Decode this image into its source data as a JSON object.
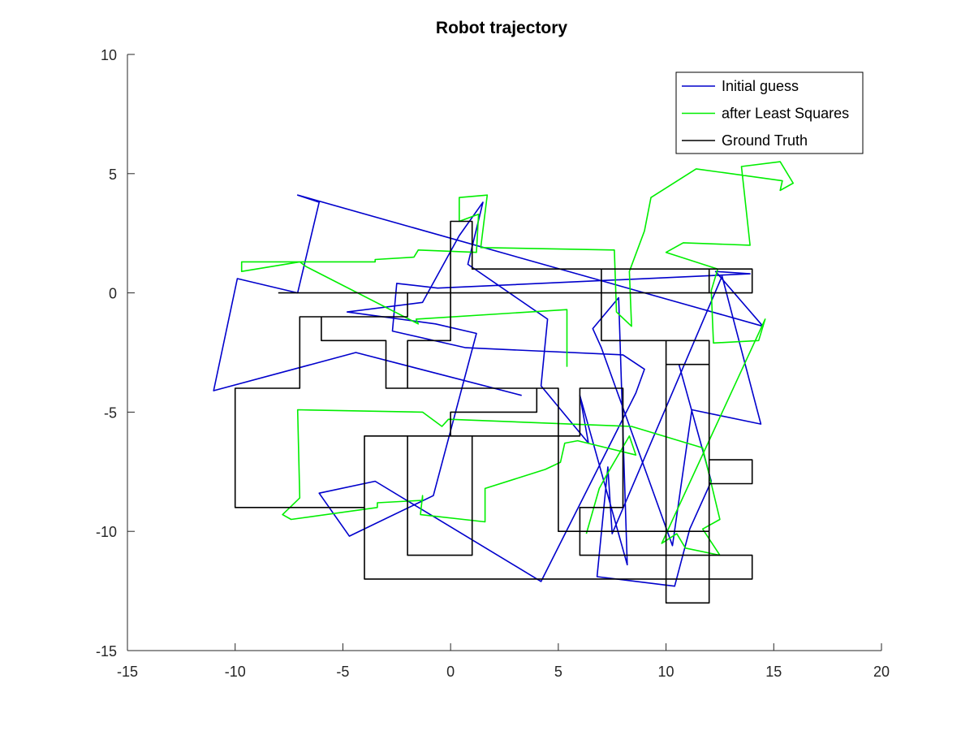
{
  "chart_data": {
    "type": "line",
    "title": "Robot trajectory",
    "xlabel": "",
    "ylabel": "",
    "xlim": [
      -15,
      20
    ],
    "ylim": [
      -15,
      10
    ],
    "xticks": [
      -15,
      -10,
      -5,
      0,
      5,
      10,
      15,
      20
    ],
    "yticks": [
      -15,
      -10,
      -5,
      0,
      5,
      10
    ],
    "grid": false,
    "legend_position": "top-right",
    "series": [
      {
        "name": "Initial guess",
        "color": "#0000cc",
        "x": [
          3.3,
          -4.4,
          -11,
          -9.9,
          -7.1,
          -6.1,
          -7.1,
          14.5,
          12.3,
          13.9,
          -0.6,
          -2.5,
          -2.7,
          0.7,
          8,
          9,
          8.6,
          4.2,
          -3.5,
          -6.1,
          -4.7,
          -0.8,
          1.2,
          -0.7,
          -4.8,
          -1.3,
          0.4,
          1.5,
          0.8,
          4.5,
          4.2,
          6.4,
          6.0,
          8.2,
          7.8,
          6.6,
          7.0,
          10.3,
          11.2,
          14.4,
          12.6,
          7.5,
          7.3,
          6.8,
          10.4,
          11.1,
          12.1,
          10.6
        ],
        "y": [
          -4.3,
          -2.5,
          -4.1,
          0.6,
          0,
          3.8,
          4.1,
          -1.4,
          0.9,
          0.8,
          0.2,
          0.4,
          -1.6,
          -2.3,
          -2.6,
          -3.2,
          -4.2,
          -12.1,
          -7.9,
          -8.4,
          -10.2,
          -8.5,
          -1.7,
          -1.3,
          -0.8,
          -0.4,
          2.4,
          3.8,
          1.2,
          -1.1,
          -3.9,
          -6.3,
          -4.3,
          -11.4,
          -0.2,
          -1.5,
          -2.3,
          -10.6,
          -4.9,
          -5.5,
          0.7,
          -10.1,
          -7.3,
          -11.9,
          -12.3,
          -9.9,
          -7.9,
          -3.0
        ]
      },
      {
        "name": "after Least Squares",
        "color": "#00ee00",
        "x": [
          5.4,
          5.4,
          -1.6,
          -1.5,
          -6.7,
          -7,
          -9.7,
          -9.7,
          -3.5,
          -3.5,
          -1.7,
          -1.5,
          1.2,
          1.3,
          0.4,
          0.4,
          1.7,
          1.4,
          7.6,
          7.7,
          8.4,
          8.3,
          9.0,
          9.3,
          11.4,
          15.4,
          15.3,
          15.9,
          15.3,
          13.5,
          13.9,
          10.8,
          10.0,
          12.4,
          12.1,
          12.2,
          14.3,
          14.6,
          9.8,
          10.5,
          10.9,
          12.5,
          11.7,
          12.5,
          11.7,
          8.4,
          -0.1,
          -0.4,
          -1.3,
          -7.1,
          -7.0,
          -7.8,
          -7.4,
          -3.4,
          -3.4,
          -1.3,
          -1.3,
          -1.4,
          1.6,
          1.6,
          4.4,
          5.1,
          5.3,
          5.9,
          8.6,
          8.3,
          7.2,
          6.9,
          6.3
        ],
        "y": [
          -3.1,
          -0.7,
          -1.1,
          -1.3,
          1.1,
          1.3,
          0.9,
          1.3,
          1.3,
          1.4,
          1.5,
          1.8,
          1.7,
          3.3,
          3.0,
          4.0,
          4.1,
          1.9,
          1.8,
          -0.8,
          -1.4,
          0.9,
          2.6,
          4.0,
          5.2,
          4.7,
          4.3,
          4.6,
          5.5,
          5.3,
          2.0,
          2.1,
          1.7,
          1.0,
          0.1,
          -2.1,
          -2.0,
          -1.1,
          -10.5,
          -10.1,
          -10.7,
          -11.0,
          -9.9,
          -9.5,
          -6.5,
          -5.6,
          -5.3,
          -5.6,
          -5.0,
          -4.9,
          -8.6,
          -9.3,
          -9.5,
          -9.0,
          -8.8,
          -8.7,
          -8.5,
          -9.3,
          -9.6,
          -8.2,
          -7.4,
          -7.1,
          -6.3,
          -6.2,
          -6.8,
          -6.0,
          -7.7,
          -8.2,
          -10.1
        ]
      },
      {
        "name": "Ground Truth",
        "color": "#000000",
        "x": [
          -8,
          12,
          12,
          7,
          7,
          10,
          10,
          12,
          12,
          14,
          14,
          12,
          12,
          14,
          14,
          12,
          12,
          10,
          10,
          12,
          12,
          5,
          5,
          -2,
          -2,
          0,
          0,
          1,
          1,
          14,
          14,
          -2,
          -2,
          -7,
          -7,
          -10,
          -10,
          -4,
          -4,
          -2,
          -2,
          1,
          1,
          -4,
          -4,
          12,
          12,
          6,
          6,
          8,
          8,
          6,
          6,
          0,
          0,
          4,
          4,
          -3,
          -3,
          -6,
          -6
        ],
        "y": [
          0,
          0,
          1,
          1,
          -2,
          -2,
          -13,
          -13,
          -7,
          -7,
          -8,
          -8,
          -11,
          -11,
          -12,
          -12,
          -2,
          -2,
          -3,
          -3,
          -10,
          -10,
          -4,
          -4,
          -2,
          -2,
          3,
          3,
          1,
          1,
          0,
          0,
          -1,
          -1,
          -4,
          -4,
          -9,
          -9,
          -6,
          -6,
          -11,
          -11,
          -6,
          -6,
          -12,
          -12,
          -11,
          -11,
          -9,
          -9,
          -4,
          -4,
          -6,
          -6,
          -5,
          -5,
          -4,
          -4,
          -2,
          -2,
          -1
        ]
      }
    ]
  }
}
